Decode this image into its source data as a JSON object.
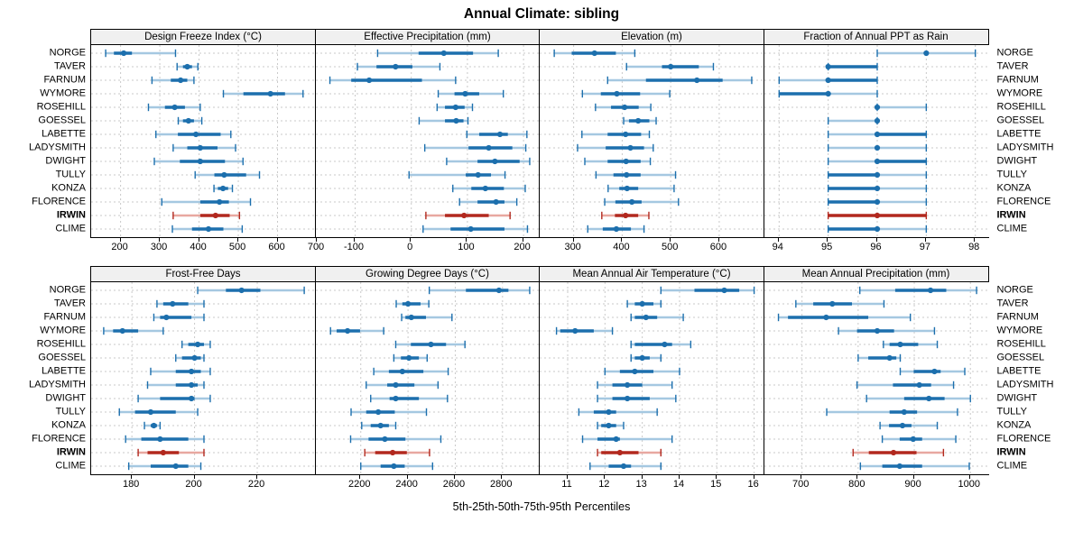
{
  "title": "Annual Climate: sibling",
  "caption": "5th-25th-50th-75th-95th Percentiles",
  "percentile_labels": [
    "5th",
    "25th",
    "50th",
    "75th",
    "95th"
  ],
  "colors": {
    "blue_dark": "#1c6fad",
    "blue_light": "#a5c8e1",
    "red_dark": "#b2281e",
    "red_light": "#e8a8a0",
    "grid": "#c9c9c9",
    "strip_bg": "#f0f0f0",
    "border": "#000000"
  },
  "chart_data": {
    "type": "scatter",
    "style": "trellis-percentile-errorbars",
    "grid": true,
    "stations": [
      "NORGE",
      "TAVER",
      "FARNUM",
      "WYMORE",
      "ROSEHILL",
      "GOESSEL",
      "LABETTE",
      "LADYSMITH",
      "DWIGHT",
      "TULLY",
      "KONZA",
      "FLORENCE",
      "IRWIN",
      "CLIME"
    ],
    "highlight_station": "IRWIN",
    "panels": [
      {
        "title": "Design Freeze Index (°C)",
        "xlim": [
          125,
          700
        ],
        "ticks": [
          200,
          300,
          400,
          500,
          600,
          700
        ],
        "values": [
          [
            162,
            183,
            208,
            229,
            340
          ],
          [
            344,
            359,
            370,
            382,
            397
          ],
          [
            280,
            328,
            353,
            370,
            387
          ],
          [
            462,
            513,
            582,
            619,
            665
          ],
          [
            271,
            313,
            338,
            364,
            403
          ],
          [
            347,
            359,
            373,
            387,
            407
          ],
          [
            290,
            346,
            392,
            455,
            481
          ],
          [
            334,
            370,
            403,
            447,
            493
          ],
          [
            286,
            351,
            403,
            466,
            512
          ],
          [
            390,
            439,
            464,
            520,
            554
          ],
          [
            438,
            448,
            461,
            474,
            485
          ],
          [
            305,
            403,
            452,
            476,
            531
          ],
          [
            334,
            403,
            442,
            478,
            503
          ],
          [
            332,
            382,
            424,
            462,
            510
          ]
        ]
      },
      {
        "title": "Effective Precipitation (mm)",
        "xlim": [
          -170,
          232
        ],
        "ticks": [
          -100,
          0,
          100,
          200
        ],
        "values": [
          [
            -60,
            13,
            58,
            110,
            155
          ],
          [
            -96,
            -62,
            -28,
            2,
            51
          ],
          [
            -145,
            -107,
            -75,
            19,
            79
          ],
          [
            48,
            77,
            96,
            121,
            164
          ],
          [
            46,
            60,
            79,
            95,
            109
          ],
          [
            14,
            60,
            80,
            93,
            101
          ],
          [
            99,
            121,
            158,
            172,
            206
          ],
          [
            24,
            102,
            138,
            180,
            204
          ],
          [
            63,
            118,
            149,
            193,
            211
          ],
          [
            -4,
            97,
            119,
            142,
            167
          ],
          [
            74,
            107,
            132,
            165,
            203
          ],
          [
            86,
            118,
            151,
            166,
            188
          ],
          [
            26,
            60,
            94,
            138,
            176
          ],
          [
            21,
            70,
            106,
            166,
            207
          ]
        ]
      },
      {
        "title": "Elevation (m)",
        "xlim": [
          230,
          695
        ],
        "ticks": [
          300,
          400,
          500,
          600
        ],
        "values": [
          [
            260,
            296,
            343,
            387,
            426
          ],
          [
            409,
            482,
            500,
            558,
            588
          ],
          [
            370,
            449,
            554,
            607,
            667
          ],
          [
            318,
            356,
            389,
            437,
            498
          ],
          [
            345,
            377,
            405,
            434,
            459
          ],
          [
            403,
            414,
            433,
            456,
            470
          ],
          [
            317,
            370,
            407,
            439,
            456
          ],
          [
            308,
            366,
            417,
            445,
            464
          ],
          [
            323,
            370,
            408,
            438,
            458
          ],
          [
            346,
            382,
            409,
            438,
            510
          ],
          [
            371,
            394,
            410,
            433,
            507
          ],
          [
            364,
            386,
            420,
            440,
            516
          ],
          [
            358,
            385,
            407,
            433,
            455
          ],
          [
            329,
            360,
            388,
            418,
            445
          ]
        ]
      },
      {
        "title": "Fraction of Annual PPT as Rain",
        "xlim": [
          93.7,
          98.3
        ],
        "ticks": [
          94,
          95,
          96,
          97,
          98
        ],
        "values": [
          [
            96,
            97,
            97,
            97,
            98
          ],
          [
            95,
            95,
            95,
            96,
            96
          ],
          [
            94,
            95,
            95,
            96,
            96
          ],
          [
            94,
            94,
            95,
            95,
            96
          ],
          [
            96,
            96,
            96,
            96,
            97
          ],
          [
            95,
            96,
            96,
            96,
            96
          ],
          [
            95,
            96,
            96,
            97,
            97
          ],
          [
            95,
            96,
            96,
            96,
            97
          ],
          [
            95,
            96,
            96,
            97,
            97
          ],
          [
            95,
            95,
            96,
            96,
            97
          ],
          [
            95,
            95,
            96,
            96,
            97
          ],
          [
            95,
            95,
            96,
            96,
            97
          ],
          [
            95,
            95,
            96,
            97,
            97
          ],
          [
            95,
            95,
            96,
            96,
            97
          ]
        ]
      },
      {
        "title": "Frost-Free Days",
        "xlim": [
          167,
          239
        ],
        "ticks": [
          180,
          200,
          220
        ],
        "values": [
          [
            201,
            210,
            215,
            221,
            235
          ],
          [
            188,
            190,
            193,
            198,
            203
          ],
          [
            187,
            189,
            191,
            199,
            203
          ],
          [
            171,
            174,
            177,
            182,
            190
          ],
          [
            196,
            198,
            201,
            203,
            205
          ],
          [
            194,
            196,
            200,
            202,
            203
          ],
          [
            186,
            194,
            199,
            202,
            205
          ],
          [
            185,
            194,
            199,
            201,
            203
          ],
          [
            182,
            189,
            199,
            200,
            205
          ],
          [
            176,
            181,
            186,
            194,
            201
          ],
          [
            184,
            186,
            187,
            188,
            189
          ],
          [
            178,
            183,
            189,
            198,
            203
          ],
          [
            182,
            185,
            190,
            195,
            203
          ],
          [
            179,
            186,
            194,
            198,
            202
          ]
        ]
      },
      {
        "title": "Growing Degree Days (°C)",
        "xlim": [
          2010,
          2965
        ],
        "ticks": [
          2200,
          2400,
          2600,
          2800
        ],
        "values": [
          [
            2490,
            2645,
            2785,
            2825,
            2915
          ],
          [
            2350,
            2376,
            2400,
            2453,
            2488
          ],
          [
            2373,
            2389,
            2414,
            2476,
            2586
          ],
          [
            2072,
            2098,
            2144,
            2197,
            2297
          ],
          [
            2348,
            2412,
            2497,
            2561,
            2641
          ],
          [
            2340,
            2370,
            2404,
            2446,
            2481
          ],
          [
            2255,
            2319,
            2376,
            2465,
            2570
          ],
          [
            2223,
            2312,
            2348,
            2427,
            2527
          ],
          [
            2242,
            2322,
            2348,
            2446,
            2567
          ],
          [
            2159,
            2223,
            2274,
            2344,
            2478
          ],
          [
            2204,
            2242,
            2284,
            2319,
            2348
          ],
          [
            2157,
            2233,
            2302,
            2389,
            2539
          ],
          [
            2217,
            2261,
            2335,
            2395,
            2491
          ],
          [
            2200,
            2284,
            2340,
            2386,
            2504
          ]
        ]
      },
      {
        "title": "Mean Annual Air Temperature (°C)",
        "xlim": [
          10.25,
          16.3
        ],
        "ticks": [
          11,
          12,
          13,
          14,
          15,
          16
        ],
        "values": [
          [
            13.5,
            14.4,
            15.2,
            15.6,
            16.0
          ],
          [
            12.6,
            12.8,
            13.0,
            13.3,
            13.5
          ],
          [
            12.7,
            12.8,
            13.1,
            13.4,
            14.1
          ],
          [
            10.7,
            10.8,
            11.2,
            11.7,
            12.2
          ],
          [
            12.7,
            12.8,
            13.6,
            13.8,
            14.3
          ],
          [
            12.7,
            12.8,
            13.0,
            13.2,
            13.5
          ],
          [
            12.0,
            12.4,
            12.8,
            13.3,
            14.0
          ],
          [
            11.8,
            12.2,
            12.6,
            13.0,
            13.8
          ],
          [
            11.8,
            12.2,
            12.6,
            13.2,
            13.9
          ],
          [
            11.3,
            11.7,
            12.1,
            12.3,
            13.4
          ],
          [
            11.8,
            11.9,
            12.1,
            12.3,
            12.5
          ],
          [
            11.4,
            11.8,
            12.3,
            12.4,
            13.8
          ],
          [
            11.8,
            11.9,
            12.4,
            12.9,
            13.5
          ],
          [
            11.6,
            12.1,
            12.5,
            12.7,
            13.5
          ]
        ]
      },
      {
        "title": "Mean Annual Precipitation (mm)",
        "xlim": [
          633,
          1035
        ],
        "ticks": [
          700,
          800,
          900,
          1000
        ],
        "values": [
          [
            803,
            866,
            929,
            957,
            1011
          ],
          [
            689,
            720,
            754,
            789,
            846
          ],
          [
            658,
            675,
            743,
            818,
            893
          ],
          [
            765,
            798,
            834,
            864,
            936
          ],
          [
            845,
            856,
            875,
            907,
            941
          ],
          [
            800,
            818,
            856,
            868,
            875
          ],
          [
            875,
            899,
            936,
            947,
            990
          ],
          [
            798,
            862,
            909,
            930,
            970
          ],
          [
            815,
            882,
            926,
            954,
            1000
          ],
          [
            744,
            856,
            882,
            905,
            977
          ],
          [
            839,
            855,
            879,
            895,
            941
          ],
          [
            843,
            874,
            898,
            914,
            974
          ],
          [
            791,
            819,
            863,
            904,
            952
          ],
          [
            804,
            843,
            874,
            914,
            998
          ]
        ]
      }
    ]
  }
}
